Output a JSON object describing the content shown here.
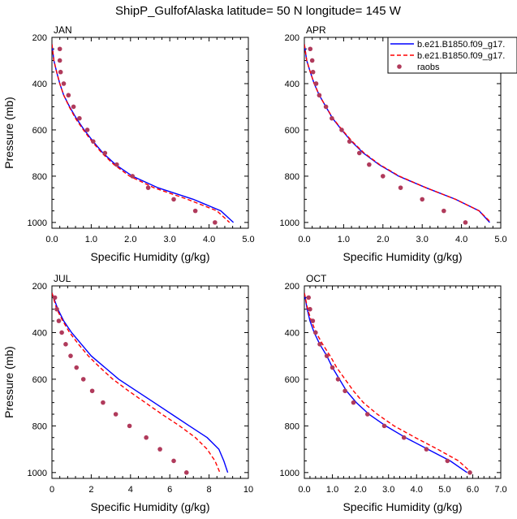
{
  "title": "ShipP_GulfofAlaska  latitude= 50 N longitude= 145 W",
  "legend": {
    "entries": [
      {
        "label": "b.e21.B1850.f09_g17.",
        "color": "#0000ff",
        "style": "solid"
      },
      {
        "label": "b.e21.B1850.f09_g17.",
        "color": "#ff0000",
        "style": "dashed"
      },
      {
        "label": "raobs",
        "color": "#b03a5b",
        "style": "marker"
      }
    ]
  },
  "chart_data": [
    {
      "type": "line",
      "title": "JAN",
      "xlabel": "Specific Humidity (g/kg)",
      "ylabel": "Pressure (mb)",
      "xlim": [
        0,
        5
      ],
      "ylim": [
        200,
        1025
      ],
      "y_reversed": true,
      "x_ticks": [
        "0.0",
        "1.0",
        "2.0",
        "3.0",
        "4.0",
        "5.0"
      ],
      "y_ticks": [
        "200",
        "400",
        "600",
        "800",
        "1000"
      ],
      "show_ylabel": true,
      "show_legend": false,
      "series": [
        {
          "color": "#0000ff",
          "style": "solid",
          "points": [
            [
              0.0,
              230
            ],
            [
              0.05,
              300
            ],
            [
              0.12,
              350
            ],
            [
              0.2,
              400
            ],
            [
              0.3,
              450
            ],
            [
              0.45,
              500
            ],
            [
              0.62,
              550
            ],
            [
              0.82,
              600
            ],
            [
              1.05,
              650
            ],
            [
              1.3,
              700
            ],
            [
              1.62,
              750
            ],
            [
              2.05,
              800
            ],
            [
              2.7,
              850
            ],
            [
              3.6,
              900
            ],
            [
              4.3,
              950
            ],
            [
              4.62,
              1000
            ]
          ]
        },
        {
          "color": "#ff0000",
          "style": "dashed",
          "points": [
            [
              0.0,
              230
            ],
            [
              0.05,
              300
            ],
            [
              0.12,
              350
            ],
            [
              0.2,
              400
            ],
            [
              0.3,
              450
            ],
            [
              0.44,
              500
            ],
            [
              0.6,
              550
            ],
            [
              0.8,
              600
            ],
            [
              1.02,
              650
            ],
            [
              1.27,
              700
            ],
            [
              1.58,
              750
            ],
            [
              1.98,
              800
            ],
            [
              2.6,
              850
            ],
            [
              3.45,
              900
            ],
            [
              4.2,
              950
            ],
            [
              4.52,
              1000
            ]
          ]
        },
        {
          "color": "#b03a5b",
          "style": "markers",
          "points": [
            [
              0.2,
              250
            ],
            [
              0.2,
              300
            ],
            [
              0.22,
              350
            ],
            [
              0.3,
              400
            ],
            [
              0.42,
              450
            ],
            [
              0.55,
              500
            ],
            [
              0.7,
              550
            ],
            [
              0.9,
              600
            ],
            [
              1.05,
              650
            ],
            [
              1.35,
              700
            ],
            [
              1.65,
              750
            ],
            [
              2.05,
              800
            ],
            [
              2.45,
              850
            ],
            [
              3.1,
              900
            ],
            [
              3.65,
              950
            ],
            [
              4.15,
              1000
            ]
          ]
        }
      ]
    },
    {
      "type": "line",
      "title": "APR",
      "xlabel": "Specific Humidity (g/kg)",
      "ylabel": "",
      "xlim": [
        0,
        5
      ],
      "ylim": [
        200,
        1025
      ],
      "y_reversed": true,
      "x_ticks": [
        "0.0",
        "1.0",
        "2.0",
        "3.0",
        "4.0",
        "5.0"
      ],
      "y_ticks": [
        "200",
        "400",
        "600",
        "800",
        "1000"
      ],
      "show_ylabel": false,
      "show_legend": true,
      "series": [
        {
          "color": "#0000ff",
          "style": "solid",
          "points": [
            [
              0.0,
              230
            ],
            [
              0.06,
              300
            ],
            [
              0.15,
              350
            ],
            [
              0.25,
              400
            ],
            [
              0.38,
              450
            ],
            [
              0.55,
              500
            ],
            [
              0.72,
              550
            ],
            [
              0.95,
              600
            ],
            [
              1.2,
              650
            ],
            [
              1.5,
              700
            ],
            [
              1.9,
              750
            ],
            [
              2.4,
              800
            ],
            [
              3.1,
              850
            ],
            [
              3.85,
              900
            ],
            [
              4.45,
              950
            ],
            [
              4.72,
              1000
            ]
          ]
        },
        {
          "color": "#ff0000",
          "style": "dashed",
          "points": [
            [
              0.0,
              230
            ],
            [
              0.06,
              300
            ],
            [
              0.15,
              350
            ],
            [
              0.25,
              400
            ],
            [
              0.38,
              450
            ],
            [
              0.55,
              500
            ],
            [
              0.73,
              550
            ],
            [
              0.96,
              600
            ],
            [
              1.22,
              650
            ],
            [
              1.52,
              700
            ],
            [
              1.92,
              750
            ],
            [
              2.42,
              800
            ],
            [
              3.1,
              850
            ],
            [
              3.85,
              900
            ],
            [
              4.45,
              950
            ],
            [
              4.75,
              1000
            ]
          ]
        },
        {
          "color": "#b03a5b",
          "style": "markers",
          "points": [
            [
              0.15,
              250
            ],
            [
              0.2,
              300
            ],
            [
              0.22,
              350
            ],
            [
              0.3,
              400
            ],
            [
              0.38,
              450
            ],
            [
              0.55,
              500
            ],
            [
              0.7,
              550
            ],
            [
              0.95,
              600
            ],
            [
              1.15,
              650
            ],
            [
              1.4,
              700
            ],
            [
              1.65,
              750
            ],
            [
              2.0,
              800
            ],
            [
              2.45,
              850
            ],
            [
              3.0,
              900
            ],
            [
              3.55,
              950
            ],
            [
              4.1,
              1000
            ]
          ]
        }
      ]
    },
    {
      "type": "line",
      "title": "JUL",
      "xlabel": "Specific Humidity (g/kg)",
      "ylabel": "Pressure (mb)",
      "xlim": [
        0,
        10
      ],
      "ylim": [
        200,
        1025
      ],
      "y_reversed": true,
      "x_ticks": [
        "0",
        "2",
        "4",
        "6",
        "8",
        "10"
      ],
      "y_ticks": [
        "200",
        "400",
        "600",
        "800",
        "1000"
      ],
      "show_ylabel": true,
      "show_legend": false,
      "series": [
        {
          "color": "#0000ff",
          "style": "solid",
          "points": [
            [
              0.0,
              230
            ],
            [
              0.3,
              300
            ],
            [
              0.6,
              350
            ],
            [
              1.0,
              400
            ],
            [
              1.5,
              450
            ],
            [
              2.0,
              500
            ],
            [
              2.7,
              550
            ],
            [
              3.4,
              600
            ],
            [
              4.3,
              650
            ],
            [
              5.2,
              700
            ],
            [
              6.1,
              750
            ],
            [
              7.0,
              800
            ],
            [
              7.9,
              850
            ],
            [
              8.5,
              900
            ],
            [
              8.75,
              950
            ],
            [
              8.95,
              1000
            ]
          ]
        },
        {
          "color": "#ff0000",
          "style": "dashed",
          "points": [
            [
              0.0,
              230
            ],
            [
              0.25,
              300
            ],
            [
              0.55,
              350
            ],
            [
              0.9,
              400
            ],
            [
              1.35,
              450
            ],
            [
              1.85,
              500
            ],
            [
              2.45,
              550
            ],
            [
              3.1,
              600
            ],
            [
              3.9,
              650
            ],
            [
              4.75,
              700
            ],
            [
              5.6,
              750
            ],
            [
              6.5,
              800
            ],
            [
              7.3,
              850
            ],
            [
              7.9,
              900
            ],
            [
              8.3,
              950
            ],
            [
              8.55,
              1000
            ]
          ]
        },
        {
          "color": "#b03a5b",
          "style": "markers",
          "points": [
            [
              0.15,
              250
            ],
            [
              0.25,
              300
            ],
            [
              0.35,
              350
            ],
            [
              0.5,
              400
            ],
            [
              0.7,
              450
            ],
            [
              0.95,
              500
            ],
            [
              1.25,
              550
            ],
            [
              1.6,
              600
            ],
            [
              2.05,
              650
            ],
            [
              2.6,
              700
            ],
            [
              3.25,
              750
            ],
            [
              3.95,
              800
            ],
            [
              4.8,
              850
            ],
            [
              5.5,
              900
            ],
            [
              6.2,
              950
            ],
            [
              6.85,
              1000
            ]
          ]
        }
      ]
    },
    {
      "type": "line",
      "title": "OCT",
      "xlabel": "Specific Humidity (g/kg)",
      "ylabel": "",
      "xlim": [
        0,
        7
      ],
      "ylim": [
        200,
        1025
      ],
      "y_reversed": true,
      "x_ticks": [
        "0.0",
        "1.0",
        "2.0",
        "3.0",
        "4.0",
        "5.0",
        "6.0",
        "7.0"
      ],
      "y_ticks": [
        "200",
        "400",
        "600",
        "800",
        "1000"
      ],
      "show_ylabel": false,
      "show_legend": false,
      "series": [
        {
          "color": "#0000ff",
          "style": "solid",
          "points": [
            [
              0.0,
              230
            ],
            [
              0.1,
              300
            ],
            [
              0.2,
              350
            ],
            [
              0.35,
              400
            ],
            [
              0.55,
              450
            ],
            [
              0.8,
              500
            ],
            [
              1.0,
              550
            ],
            [
              1.25,
              600
            ],
            [
              1.5,
              650
            ],
            [
              1.85,
              700
            ],
            [
              2.3,
              750
            ],
            [
              2.9,
              800
            ],
            [
              3.6,
              850
            ],
            [
              4.4,
              900
            ],
            [
              5.2,
              950
            ],
            [
              5.8,
              1000
            ]
          ]
        },
        {
          "color": "#ff0000",
          "style": "dashed",
          "points": [
            [
              0.0,
              230
            ],
            [
              0.12,
              300
            ],
            [
              0.25,
              350
            ],
            [
              0.42,
              400
            ],
            [
              0.65,
              450
            ],
            [
              0.92,
              500
            ],
            [
              1.15,
              550
            ],
            [
              1.45,
              600
            ],
            [
              1.75,
              650
            ],
            [
              2.1,
              700
            ],
            [
              2.6,
              750
            ],
            [
              3.2,
              800
            ],
            [
              3.95,
              850
            ],
            [
              4.75,
              900
            ],
            [
              5.5,
              950
            ],
            [
              5.95,
              1000
            ]
          ]
        },
        {
          "color": "#b03a5b",
          "style": "markers",
          "points": [
            [
              0.15,
              250
            ],
            [
              0.2,
              300
            ],
            [
              0.3,
              350
            ],
            [
              0.4,
              400
            ],
            [
              0.55,
              450
            ],
            [
              0.8,
              500
            ],
            [
              1.0,
              550
            ],
            [
              1.2,
              600
            ],
            [
              1.45,
              650
            ],
            [
              1.75,
              700
            ],
            [
              2.25,
              750
            ],
            [
              2.85,
              800
            ],
            [
              3.55,
              850
            ],
            [
              4.35,
              900
            ],
            [
              5.1,
              950
            ],
            [
              5.9,
              1000
            ]
          ]
        }
      ]
    }
  ]
}
